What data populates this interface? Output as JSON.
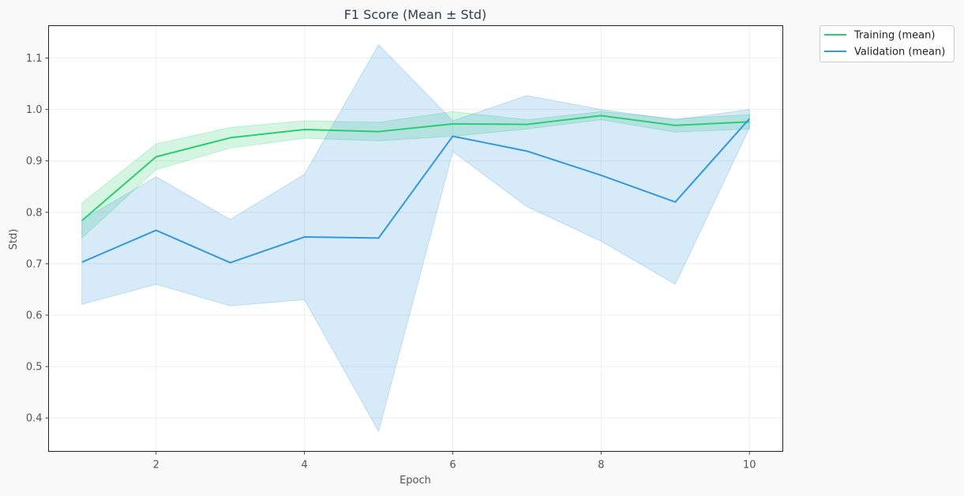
{
  "chart_data": {
    "type": "line",
    "title": "F1 Score (Mean ± Std)",
    "xlabel": "Epoch",
    "ylabel": "Std)",
    "xlim": [
      0.55,
      10.45
    ],
    "ylim": [
      0.335,
      1.163
    ],
    "x_ticks": [
      2,
      4,
      6,
      8,
      10
    ],
    "y_ticks": [
      0.4,
      0.5,
      0.6,
      0.7,
      0.8,
      0.9,
      1.0,
      1.1
    ],
    "x_tick_labels": [
      "2",
      "4",
      "6",
      "8",
      "10"
    ],
    "y_tick_labels": [
      "0.4",
      "0.5",
      "0.6",
      "0.7",
      "0.8",
      "0.9",
      "1.0",
      "1.1"
    ],
    "grid": true,
    "legend_position": "outside top-right",
    "x": [
      1,
      2,
      3,
      4,
      5,
      6,
      7,
      8,
      9,
      10
    ],
    "series": [
      {
        "name": "Training (mean)",
        "color": "#2ecc71",
        "mean": [
          0.784,
          0.908,
          0.945,
          0.961,
          0.957,
          0.972,
          0.971,
          0.988,
          0.969,
          0.976
        ],
        "upper": [
          0.818,
          0.933,
          0.965,
          0.978,
          0.975,
          0.996,
          0.98,
          0.996,
          0.982,
          0.99
        ],
        "lower": [
          0.75,
          0.883,
          0.925,
          0.944,
          0.939,
          0.948,
          0.962,
          0.98,
          0.956,
          0.962
        ]
      },
      {
        "name": "Validation (mean)",
        "color": "#3498db",
        "mean": [
          0.703,
          0.765,
          0.702,
          0.752,
          0.75,
          0.948,
          0.919,
          0.872,
          0.82,
          0.982
        ],
        "upper": [
          0.785,
          0.869,
          0.786,
          0.874,
          1.126,
          0.978,
          1.027,
          1.0,
          0.98,
          1.0
        ],
        "lower": [
          0.621,
          0.66,
          0.618,
          0.63,
          0.374,
          0.918,
          0.811,
          0.744,
          0.66,
          0.964
        ]
      }
    ]
  }
}
